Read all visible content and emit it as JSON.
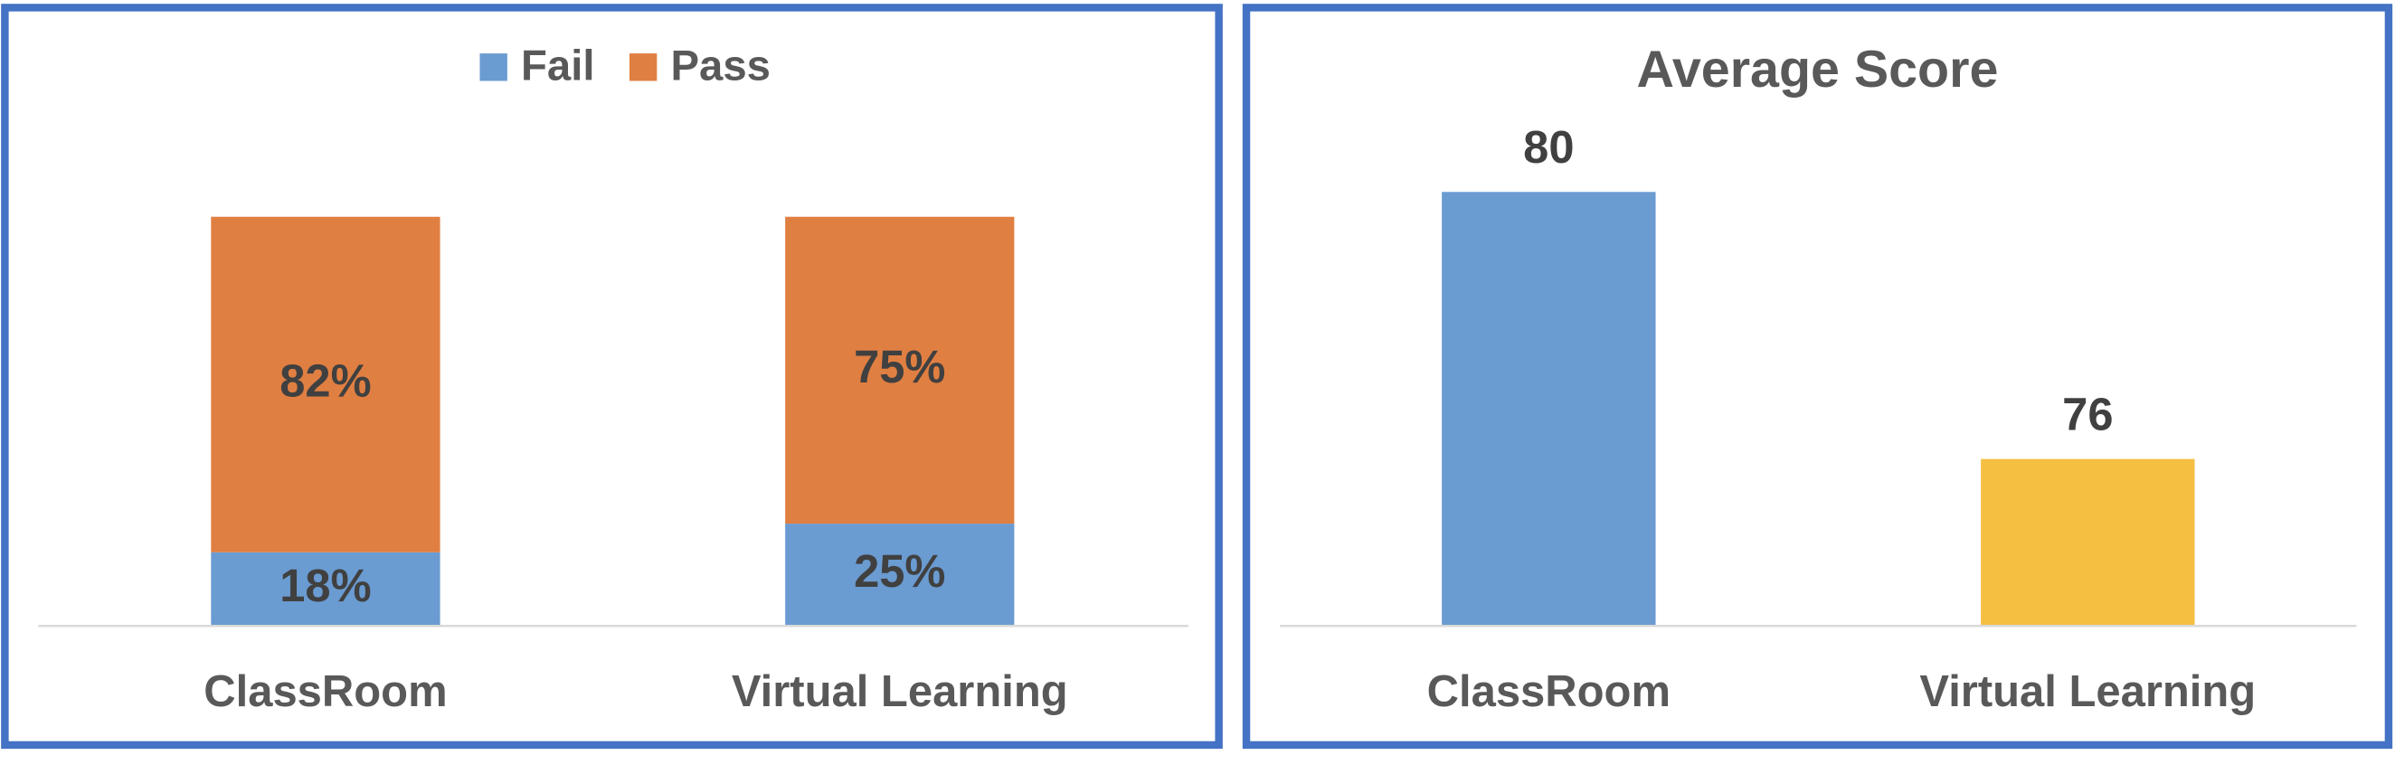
{
  "chart_data": [
    {
      "type": "stacked_bar",
      "categories": [
        "ClassRoom",
        "Virtual Learning"
      ],
      "series": [
        {
          "name": "Fail",
          "color": "#6a9bd1",
          "values": [
            18,
            25
          ],
          "value_labels": [
            "18%",
            "25%"
          ]
        },
        {
          "name": "Pass",
          "color": "#e07f42",
          "values": [
            82,
            75
          ],
          "value_labels": [
            "82%",
            "75%"
          ]
        }
      ],
      "ylim": [
        0,
        100
      ],
      "legend": "top"
    },
    {
      "type": "bar",
      "title": "Average Score",
      "categories": [
        "ClassRoom",
        "Virtual Learning"
      ],
      "values": [
        80,
        76
      ],
      "colors": [
        "#6a9bd1",
        "#f5bf42"
      ],
      "ylim": [
        73.5,
        81
      ]
    }
  ]
}
